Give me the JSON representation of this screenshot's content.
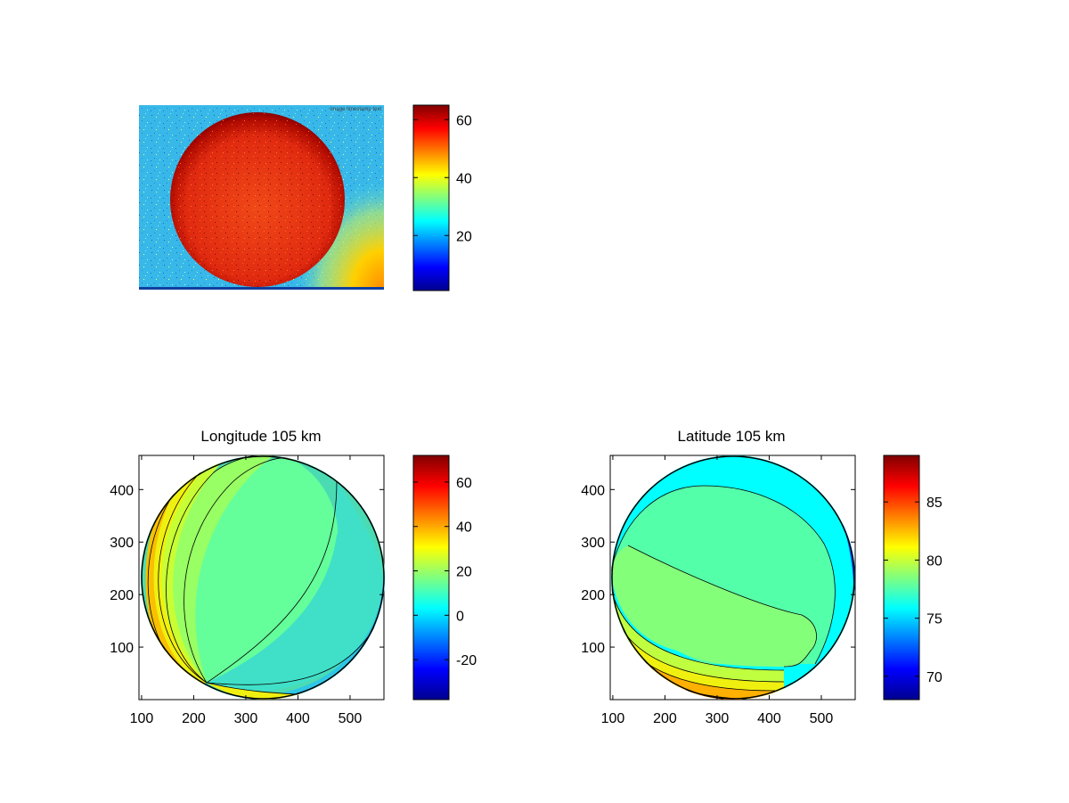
{
  "chart_data": [
    {
      "type": "heatmap",
      "title": "",
      "xlabel": "",
      "ylabel": "",
      "colormap": "jet",
      "colorbar": {
        "ticks": [
          20,
          40,
          60
        ],
        "range": [
          1,
          65
        ]
      },
      "watermark": "image timestamp text"
    },
    {
      "type": "heatmap",
      "subtype": "filled-contour",
      "title": "Longitude 105 km",
      "xlabel": "",
      "ylabel": "",
      "xlim": [
        95,
        565
      ],
      "ylim": [
        0,
        465
      ],
      "x_ticks": [
        100,
        200,
        300,
        400,
        500
      ],
      "y_ticks": [
        100,
        200,
        300,
        400
      ],
      "colormap": "jet",
      "colorbar": {
        "ticks": [
          -20,
          0,
          20,
          40,
          60
        ],
        "range": [
          -38,
          72
        ]
      },
      "disk": {
        "center": [
          330,
          233
        ],
        "radius": 230
      }
    },
    {
      "type": "heatmap",
      "subtype": "filled-contour",
      "title": "Latitude 105 km",
      "xlabel": "",
      "ylabel": "",
      "xlim": [
        95,
        565
      ],
      "ylim": [
        0,
        465
      ],
      "x_ticks": [
        100,
        200,
        300,
        400,
        500
      ],
      "y_ticks": [
        100,
        200,
        300,
        400
      ],
      "colormap": "jet",
      "colorbar": {
        "ticks": [
          70,
          75,
          80,
          85
        ],
        "range": [
          68,
          89
        ]
      },
      "disk": {
        "center": [
          330,
          233
        ],
        "radius": 230
      }
    }
  ]
}
